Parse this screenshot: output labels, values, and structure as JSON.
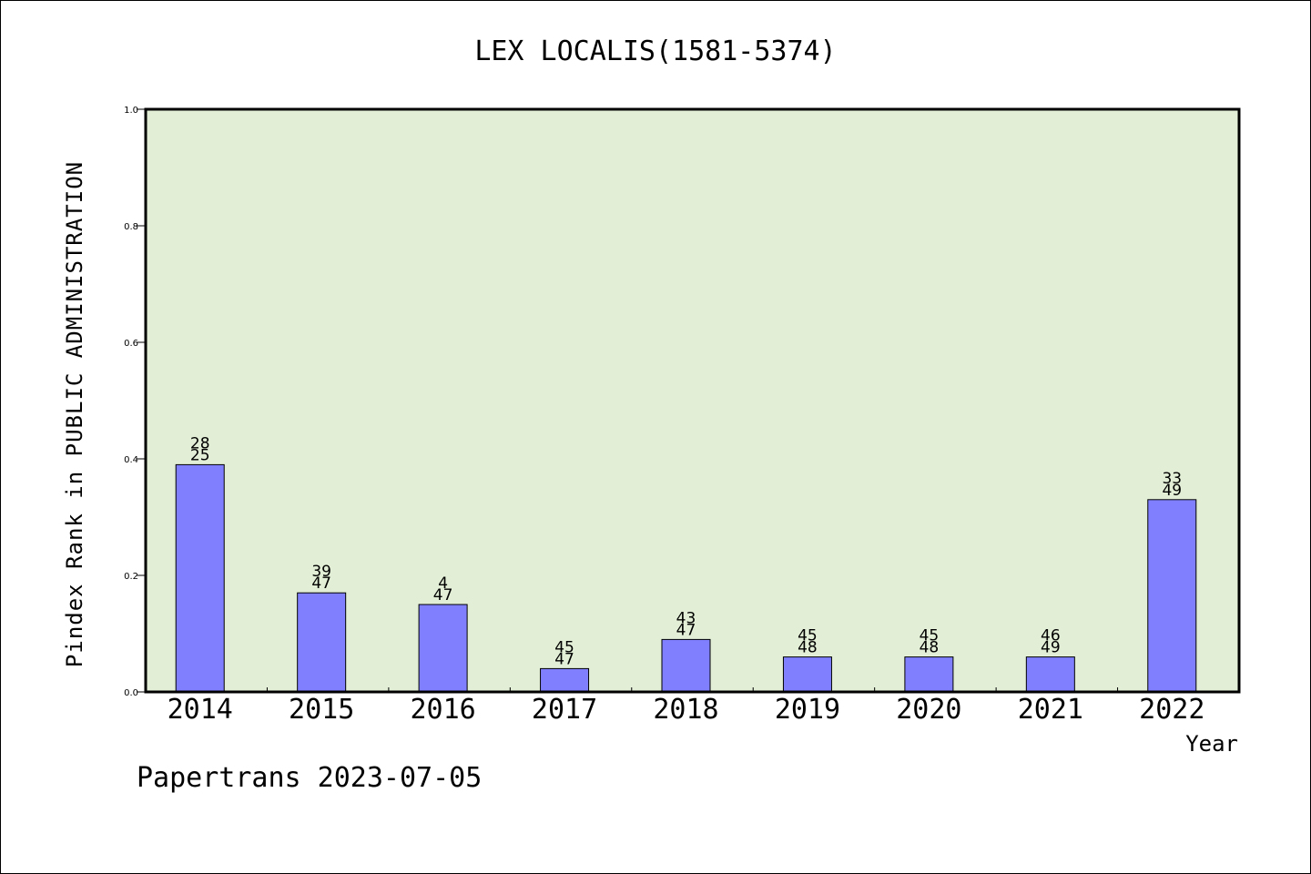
{
  "chart_data": {
    "type": "bar",
    "title": "LEX LOCALIS(1581-5374)",
    "xlabel": "Year",
    "ylabel": "Pindex Rank in PUBLIC ADMINISTRATION",
    "categories": [
      "2014",
      "2015",
      "2016",
      "2017",
      "2018",
      "2019",
      "2020",
      "2021",
      "2022"
    ],
    "values": [
      0.39,
      0.17,
      0.15,
      0.04,
      0.09,
      0.06,
      0.06,
      0.06,
      0.33
    ],
    "annotations": [
      {
        "top": "28",
        "bottom": "25"
      },
      {
        "top": "39",
        "bottom": "47"
      },
      {
        "top": "4",
        "bottom": "47"
      },
      {
        "top": "45",
        "bottom": "47"
      },
      {
        "top": "43",
        "bottom": "47"
      },
      {
        "top": "45",
        "bottom": "48"
      },
      {
        "top": "45",
        "bottom": "48"
      },
      {
        "top": "46",
        "bottom": "49"
      },
      {
        "top": "33",
        "bottom": "49"
      }
    ],
    "ylim": [
      0,
      1.0
    ],
    "yticks": [
      "0.0",
      "0.2",
      "0.4",
      "0.6",
      "0.8",
      "1.0"
    ],
    "grid": false,
    "colors": {
      "bar": "#8080ff",
      "plot_background": "#e2efd6"
    }
  },
  "footer": {
    "credit": "Papertrans 2023-07-05"
  }
}
